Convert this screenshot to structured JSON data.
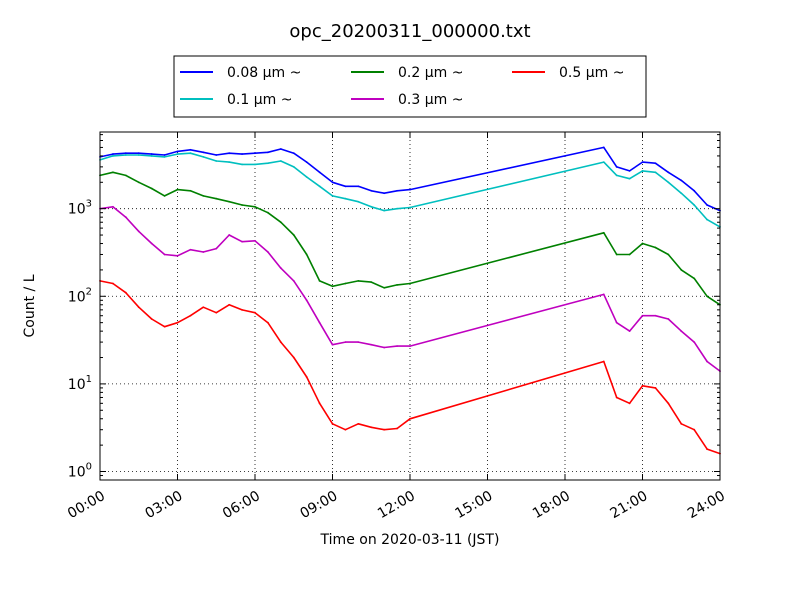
{
  "chart_data": {
    "type": "line",
    "title": "opc_20200311_000000.txt",
    "xlabel": "Time on 2020-03-11 (JST)",
    "ylabel": "Count / L",
    "yscale": "log",
    "xlim": [
      "00:00",
      "24:00"
    ],
    "ylim": [
      0.8,
      7500
    ],
    "grid": true,
    "legend_position": "top-center",
    "x_tick_labels": [
      "00:00",
      "03:00",
      "06:00",
      "09:00",
      "12:00",
      "15:00",
      "18:00",
      "21:00",
      "24:00"
    ],
    "y_tick_labels": [
      {
        "base": "10",
        "exp": "0"
      },
      {
        "base": "10",
        "exp": "1"
      },
      {
        "base": "10",
        "exp": "2"
      },
      {
        "base": "10",
        "exp": "3"
      }
    ],
    "x": [
      "00:00",
      "00:30",
      "01:00",
      "01:30",
      "02:00",
      "02:30",
      "03:00",
      "03:30",
      "04:00",
      "04:30",
      "05:00",
      "05:30",
      "06:00",
      "06:30",
      "07:00",
      "07:30",
      "08:00",
      "08:30",
      "09:00",
      "09:30",
      "10:00",
      "10:30",
      "11:00",
      "11:30",
      "12:00",
      "19:30",
      "20:00",
      "20:30",
      "21:00",
      "21:30",
      "22:00",
      "22:30",
      "23:00",
      "23:30",
      "24:00"
    ],
    "series": [
      {
        "name": "0.08 μm ~",
        "color": "#0000ff",
        "values": [
          3900,
          4200,
          4300,
          4300,
          4200,
          4100,
          4500,
          4700,
          4400,
          4100,
          4300,
          4200,
          4300,
          4400,
          4800,
          4300,
          3400,
          2600,
          2000,
          1800,
          1800,
          1600,
          1500,
          1600,
          1650,
          5000,
          3000,
          2700,
          3400,
          3300,
          2600,
          2100,
          1600,
          1100,
          950
        ]
      },
      {
        "name": "0.1 μm ~",
        "color": "#00bfbf",
        "values": [
          3600,
          4000,
          4100,
          4100,
          4000,
          3900,
          4200,
          4300,
          3900,
          3500,
          3400,
          3200,
          3200,
          3300,
          3500,
          3000,
          2300,
          1800,
          1400,
          1300,
          1200,
          1050,
          950,
          1000,
          1030,
          3400,
          2400,
          2200,
          2700,
          2600,
          2000,
          1500,
          1100,
          750,
          620
        ]
      },
      {
        "name": "0.2 μm ~",
        "color": "#008000",
        "values": [
          2400,
          2600,
          2400,
          2000,
          1700,
          1400,
          1650,
          1600,
          1400,
          1300,
          1200,
          1100,
          1050,
          900,
          700,
          500,
          300,
          150,
          130,
          140,
          150,
          145,
          125,
          135,
          140,
          530,
          300,
          300,
          400,
          360,
          300,
          200,
          160,
          100,
          80
        ]
      },
      {
        "name": "0.3 μm ~",
        "color": "#bf00bf",
        "values": [
          1000,
          1050,
          800,
          550,
          400,
          300,
          290,
          340,
          320,
          350,
          500,
          420,
          430,
          320,
          210,
          150,
          90,
          50,
          28,
          30,
          30,
          28,
          26,
          27,
          27,
          105,
          50,
          40,
          60,
          60,
          55,
          40,
          30,
          18,
          14
        ]
      },
      {
        "name": "0.5 μm ~",
        "color": "#ff0000",
        "values": [
          150,
          140,
          110,
          75,
          55,
          45,
          50,
          60,
          75,
          65,
          80,
          70,
          65,
          50,
          30,
          20,
          12,
          6,
          3.5,
          3.0,
          3.5,
          3.2,
          3.0,
          3.1,
          4.0,
          18,
          7,
          6,
          9.5,
          9,
          6,
          3.5,
          3.0,
          1.8,
          1.6
        ]
      }
    ]
  }
}
